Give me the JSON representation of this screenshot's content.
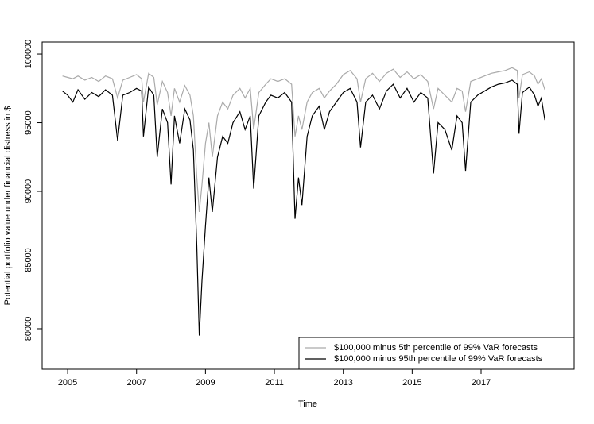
{
  "chart_data": {
    "type": "line",
    "x_label": "Time",
    "y_label": "Potential portfolio value under financial distress in $",
    "xlim": [
      2004.26,
      2019.7
    ],
    "xticks": [
      2005,
      2007,
      2009,
      2011,
      2013,
      2015,
      2017
    ],
    "ylim": [
      77050,
      100870
    ],
    "yticks": [
      80000,
      85000,
      90000,
      95000,
      100000
    ],
    "legend": "bottomright",
    "x": [
      2004.85,
      2005.0,
      2005.15,
      2005.3,
      2005.5,
      2005.7,
      2005.9,
      2006.1,
      2006.3,
      2006.45,
      2006.6,
      2006.8,
      2007.0,
      2007.15,
      2007.2,
      2007.35,
      2007.5,
      2007.6,
      2007.75,
      2007.9,
      2008.0,
      2008.1,
      2008.25,
      2008.4,
      2008.55,
      2008.65,
      2008.75,
      2008.82,
      2008.9,
      2009.0,
      2009.1,
      2009.2,
      2009.35,
      2009.5,
      2009.65,
      2009.8,
      2010.0,
      2010.15,
      2010.3,
      2010.4,
      2010.55,
      2010.75,
      2010.9,
      2011.1,
      2011.3,
      2011.5,
      2011.6,
      2011.7,
      2011.8,
      2011.95,
      2012.1,
      2012.3,
      2012.45,
      2012.6,
      2012.8,
      2013.0,
      2013.2,
      2013.4,
      2013.5,
      2013.65,
      2013.85,
      2014.05,
      2014.25,
      2014.45,
      2014.65,
      2014.85,
      2015.05,
      2015.25,
      2015.45,
      2015.62,
      2015.75,
      2015.95,
      2016.15,
      2016.3,
      2016.45,
      2016.55,
      2016.7,
      2016.9,
      2017.1,
      2017.3,
      2017.5,
      2017.7,
      2017.9,
      2018.05,
      2018.1,
      2018.2,
      2018.4,
      2018.55,
      2018.65,
      2018.75,
      2018.85
    ],
    "series": [
      {
        "name": "$100,000 minus 5th percentile of 99% VaR forecasts",
        "color": "#aaaaaa",
        "values": [
          98400,
          98300,
          98200,
          98400,
          98100,
          98300,
          98000,
          98400,
          98200,
          96800,
          98100,
          98300,
          98500,
          98200,
          96500,
          98600,
          98300,
          96300,
          98000,
          97200,
          95500,
          97500,
          96500,
          97700,
          97000,
          95500,
          91000,
          88500,
          90500,
          93500,
          95000,
          92500,
          95500,
          96500,
          96000,
          97000,
          97500,
          96800,
          97500,
          94500,
          97200,
          97800,
          98200,
          98000,
          98200,
          97800,
          94000,
          95500,
          94500,
          96500,
          97200,
          97500,
          96800,
          97300,
          97800,
          98500,
          98800,
          98200,
          96500,
          98200,
          98600,
          98000,
          98600,
          98900,
          98300,
          98700,
          98200,
          98500,
          98000,
          96000,
          97500,
          97000,
          96500,
          97500,
          97300,
          95800,
          98000,
          98200,
          98400,
          98600,
          98700,
          98800,
          99000,
          98800,
          96800,
          98500,
          98700,
          98400,
          97800,
          98200,
          97400
        ]
      },
      {
        "name": "$100,000 minus 95th percentile of 99% VaR forecasts",
        "color": "#000000",
        "values": [
          97300,
          97000,
          96500,
          97400,
          96700,
          97200,
          96900,
          97400,
          97000,
          93700,
          97000,
          97200,
          97500,
          97300,
          94000,
          97600,
          97000,
          92500,
          96000,
          95000,
          90500,
          95500,
          93500,
          96000,
          95200,
          93000,
          86000,
          79500,
          83500,
          87500,
          91000,
          88500,
          92500,
          94000,
          93500,
          95000,
          95800,
          94500,
          95500,
          90200,
          95500,
          96500,
          97000,
          96800,
          97200,
          96500,
          88000,
          91000,
          89000,
          94000,
          95500,
          96200,
          94500,
          95800,
          96500,
          97200,
          97500,
          96500,
          93200,
          96500,
          97000,
          96000,
          97300,
          97800,
          96800,
          97500,
          96500,
          97200,
          96800,
          91300,
          95000,
          94500,
          93000,
          95500,
          95000,
          91500,
          96500,
          97000,
          97300,
          97600,
          97800,
          97900,
          98100,
          97800,
          94200,
          97200,
          97600,
          97000,
          96200,
          96800,
          95200
        ]
      }
    ]
  }
}
